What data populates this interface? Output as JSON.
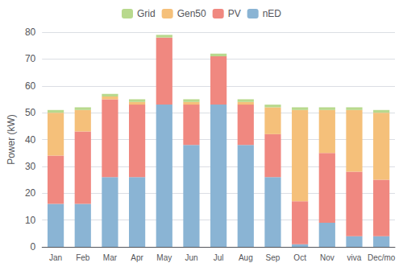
{
  "chart_data": {
    "type": "bar",
    "stacked": true,
    "categories": [
      "Jan",
      "Feb",
      "Mar",
      "Apr",
      "May",
      "Jun",
      "Jul",
      "Aug",
      "Sep",
      "Oct",
      "Nov",
      "viva",
      "Dec/mo"
    ],
    "series": [
      {
        "name": "nED",
        "color": "#8ab4d4",
        "values": [
          16,
          16,
          26,
          26,
          53,
          38,
          53,
          38,
          26,
          1,
          9,
          4,
          4
        ]
      },
      {
        "name": "PV",
        "color": "#f08880",
        "values": [
          18,
          27,
          29,
          27,
          25,
          15,
          18,
          15,
          16,
          16,
          26,
          24,
          21
        ]
      },
      {
        "name": "Gen50",
        "color": "#f5c07a",
        "values": [
          16,
          8,
          1,
          1,
          0,
          1,
          0,
          1,
          10,
          34,
          16,
          23,
          25
        ]
      },
      {
        "name": "Grid",
        "color": "#b8d98d",
        "values": [
          1,
          1,
          1,
          1,
          1,
          1,
          1,
          1,
          1,
          1,
          1,
          1,
          1
        ]
      }
    ],
    "ylabel": "Power (kW)",
    "ylim": [
      0,
      80
    ],
    "yticks": [
      0,
      10,
      20,
      30,
      40,
      50,
      60,
      70,
      80
    ],
    "grid": true,
    "legend": "top"
  }
}
